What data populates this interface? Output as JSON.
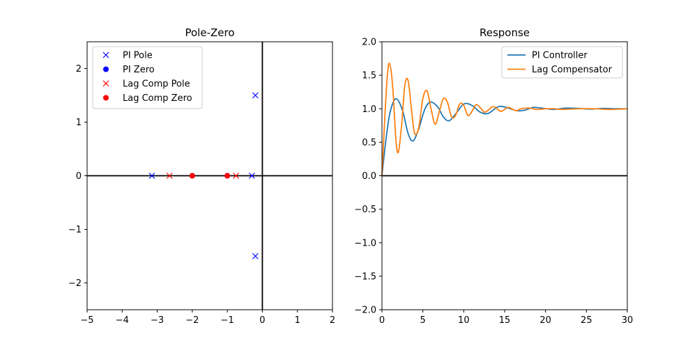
{
  "chart_data": [
    {
      "type": "scatter",
      "title": "Pole-Zero",
      "xlabel": "",
      "ylabel": "",
      "xlim": [
        -5,
        2
      ],
      "ylim": [
        -2.5,
        2.5
      ],
      "xticks": [
        -5,
        -4,
        -3,
        -2,
        -1,
        0,
        1,
        2
      ],
      "xtick_labels": [
        "−5",
        "−4",
        "−3",
        "−2",
        "−1",
        "0",
        "1",
        "2"
      ],
      "yticks": [
        -2,
        -1,
        0,
        1,
        2
      ],
      "ytick_labels": [
        "−2",
        "−1",
        "0",
        "1",
        "2"
      ],
      "reference_lines": {
        "x": 0,
        "y": 0
      },
      "legend_position": "upper-left",
      "series": [
        {
          "name": "PI Pole",
          "marker": "x",
          "color": "#0000ff",
          "points": [
            [
              -3.15,
              0
            ],
            [
              -0.3,
              0
            ],
            [
              -0.2,
              1.5
            ],
            [
              -0.2,
              -1.5
            ]
          ]
        },
        {
          "name": "PI Zero",
          "marker": "o",
          "color": "#0000ff",
          "points": [
            [
              -2,
              0
            ],
            [
              -1,
              0
            ]
          ]
        },
        {
          "name": "Lag Comp Pole",
          "marker": "x",
          "color": "#ff0000",
          "points": [
            [
              -2.65,
              0
            ],
            [
              -0.75,
              0
            ]
          ]
        },
        {
          "name": "Lag Comp Zero",
          "marker": "o",
          "color": "#ff0000",
          "points": [
            [
              -2,
              0
            ],
            [
              -1,
              0
            ]
          ]
        }
      ]
    },
    {
      "type": "line",
      "title": "Response",
      "xlabel": "",
      "ylabel": "",
      "xlim": [
        0,
        30
      ],
      "ylim": [
        -2.0,
        2.0
      ],
      "xticks": [
        0,
        5,
        10,
        15,
        20,
        25,
        30
      ],
      "xtick_labels": [
        "0",
        "5",
        "10",
        "15",
        "20",
        "25",
        "30"
      ],
      "yticks": [
        -2.0,
        -1.5,
        -1.0,
        -0.5,
        0.0,
        0.5,
        1.0,
        1.5,
        2.0
      ],
      "ytick_labels": [
        "−2.0",
        "−1.5",
        "−1.0",
        "−0.5",
        "0.0",
        "0.5",
        "1.0",
        "1.5",
        "2.0"
      ],
      "reference_lines": {
        "y": 0
      },
      "legend_position": "upper-right",
      "series": [
        {
          "name": "PI Controller",
          "color": "#1f77b4",
          "x": [
            0,
            0.5,
            1.0,
            1.7,
            2.5,
            3.2,
            3.8,
            4.5,
            5.2,
            5.9,
            6.8,
            7.5,
            8.2,
            9.0,
            10.0,
            11.0,
            12.0,
            13.0,
            14.2,
            15.2,
            16.5,
            17.5,
            18.5,
            19.5,
            21.0,
            22.5,
            24.0,
            25.5,
            27.0,
            28.5,
            30.0
          ],
          "y": [
            0,
            0.55,
            0.95,
            1.15,
            0.98,
            0.63,
            0.52,
            0.7,
            0.98,
            1.1,
            1.03,
            0.88,
            0.82,
            0.92,
            1.07,
            1.05,
            0.95,
            0.93,
            1.03,
            1.02,
            0.97,
            0.98,
            1.02,
            1.01,
            0.99,
            1.01,
            1.005,
            0.995,
            1.005,
            1.0,
            1.0
          ]
        },
        {
          "name": "Lag Compensator",
          "color": "#ff7f0e",
          "x": [
            0,
            0.3,
            0.6,
            0.9,
            1.3,
            1.7,
            2.0,
            2.4,
            2.8,
            3.2,
            3.6,
            4.0,
            4.5,
            5.0,
            5.5,
            6.0,
            6.5,
            7.0,
            7.5,
            8.0,
            8.5,
            9.0,
            9.5,
            10.0,
            10.5,
            11.0,
            11.5,
            12.0,
            12.5,
            13.0,
            13.5,
            14.0,
            14.5,
            15.0,
            15.5,
            16.0,
            16.5,
            17.0,
            18.0,
            19.0,
            20.0,
            21.0,
            22.0,
            24.0,
            26.0,
            28.0,
            30.0
          ],
          "y": [
            0,
            0.75,
            1.4,
            1.68,
            1.35,
            0.55,
            0.35,
            0.75,
            1.35,
            1.42,
            1.0,
            0.63,
            0.72,
            1.15,
            1.27,
            1.0,
            0.77,
            0.95,
            1.15,
            1.1,
            0.88,
            0.9,
            1.07,
            1.05,
            0.9,
            0.96,
            1.06,
            1.02,
            0.95,
            0.98,
            1.03,
            1.01,
            0.96,
            0.99,
            1.02,
            0.99,
            0.97,
            1.0,
            1.01,
            0.99,
            1.0,
            1.0,
            0.99,
            1.0,
            1.0,
            0.99,
            1.0
          ]
        }
      ]
    }
  ]
}
